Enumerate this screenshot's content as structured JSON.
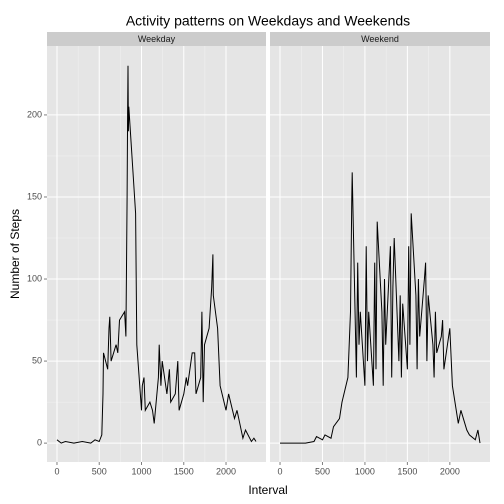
{
  "title": "Activity patterns on Weekdays and Weekends",
  "x_label": "Interval",
  "y_label": "Number of Steps",
  "chart_data": [
    {
      "type": "line",
      "panel": "Weekday",
      "color": "#000000",
      "xlim": [
        -118,
        2473
      ],
      "ylim": [
        -11.5,
        242
      ],
      "xticks": [
        0,
        500,
        1000,
        1500,
        2000
      ],
      "yticks": [
        0,
        50,
        100,
        150,
        200
      ],
      "grid": true,
      "x": [
        0,
        50,
        100,
        200,
        300,
        400,
        450,
        500,
        530,
        545,
        550,
        600,
        615,
        625,
        640,
        700,
        720,
        740,
        800,
        815,
        830,
        835,
        840,
        845,
        850,
        900,
        930,
        945,
        1000,
        1010,
        1030,
        1045,
        1100,
        1130,
        1150,
        1200,
        1210,
        1230,
        1245,
        1300,
        1330,
        1345,
        1400,
        1430,
        1445,
        1500,
        1530,
        1545,
        1600,
        1630,
        1645,
        1700,
        1715,
        1730,
        1745,
        1800,
        1830,
        1845,
        1850,
        1900,
        1930,
        2000,
        2030,
        2100,
        2130,
        2200,
        2230,
        2300,
        2330,
        2355
      ],
      "values": [
        2,
        0,
        1,
        0,
        1,
        0,
        2,
        1,
        5,
        30,
        55,
        45,
        70,
        77,
        50,
        60,
        55,
        75,
        80,
        65,
        150,
        200,
        230,
        190,
        205,
        165,
        140,
        60,
        20,
        35,
        40,
        20,
        25,
        20,
        12,
        40,
        60,
        35,
        50,
        30,
        45,
        25,
        30,
        50,
        20,
        30,
        40,
        35,
        55,
        55,
        30,
        40,
        80,
        25,
        60,
        70,
        95,
        115,
        90,
        70,
        35,
        20,
        30,
        15,
        20,
        3,
        8,
        1,
        3,
        1
      ]
    },
    {
      "type": "line",
      "panel": "Weekend",
      "color": "#000000",
      "xlim": [
        -118,
        2473
      ],
      "ylim": [
        -11.5,
        242
      ],
      "xticks": [
        0,
        500,
        1000,
        1500,
        2000
      ],
      "yticks": [
        0,
        50,
        100,
        150,
        200
      ],
      "grid": true,
      "x": [
        0,
        100,
        200,
        300,
        400,
        430,
        500,
        530,
        600,
        630,
        700,
        730,
        800,
        815,
        830,
        845,
        850,
        900,
        915,
        930,
        945,
        1000,
        1015,
        1030,
        1045,
        1100,
        1115,
        1130,
        1145,
        1200,
        1215,
        1230,
        1245,
        1300,
        1315,
        1330,
        1345,
        1400,
        1415,
        1430,
        1445,
        1500,
        1515,
        1530,
        1545,
        1600,
        1615,
        1630,
        1645,
        1700,
        1715,
        1730,
        1745,
        1800,
        1815,
        1830,
        1845,
        1900,
        1915,
        1930,
        2000,
        2030,
        2100,
        2130,
        2200,
        2230,
        2300,
        2330,
        2355
      ],
      "values": [
        0,
        0,
        0,
        0,
        1,
        4,
        2,
        5,
        3,
        10,
        15,
        25,
        40,
        60,
        80,
        150,
        165,
        40,
        110,
        60,
        80,
        35,
        120,
        50,
        80,
        35,
        110,
        45,
        135,
        80,
        35,
        100,
        60,
        120,
        40,
        95,
        125,
        50,
        90,
        40,
        85,
        45,
        120,
        60,
        140,
        90,
        45,
        100,
        65,
        100,
        110,
        50,
        90,
        60,
        40,
        80,
        55,
        65,
        75,
        45,
        70,
        35,
        12,
        20,
        8,
        5,
        2,
        8,
        0
      ]
    }
  ]
}
